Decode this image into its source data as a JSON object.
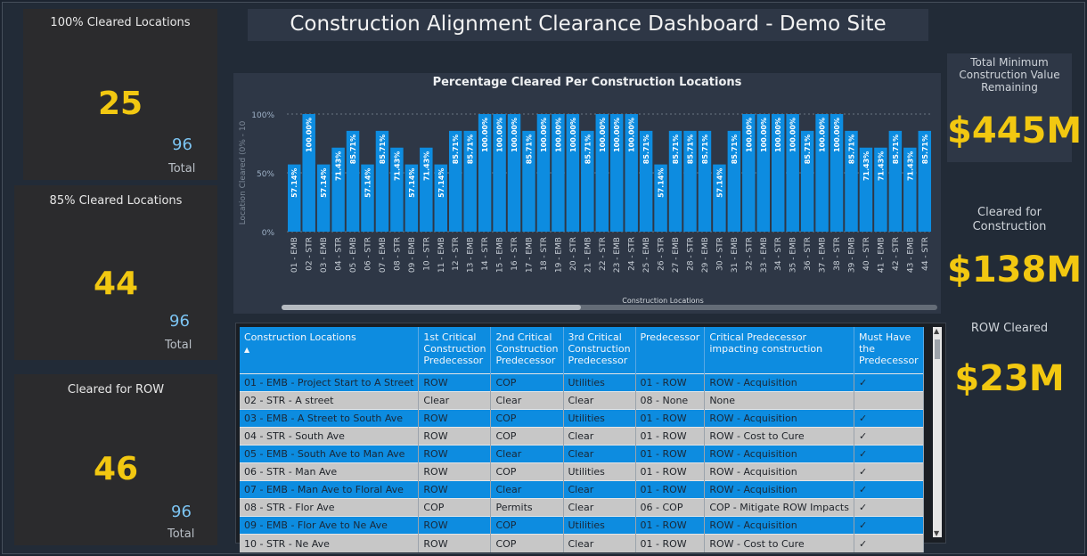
{
  "title": "Construction Alignment Clearance Dashboard - Demo Site",
  "kpis": [
    {
      "title": "100% Cleared Locations",
      "value": "25",
      "total": "96",
      "total_label": "Total"
    },
    {
      "title": "85% Cleared Locations",
      "value": "44",
      "total": "96",
      "total_label": "Total"
    },
    {
      "title": "Cleared for ROW",
      "value": "46",
      "total": "96",
      "total_label": "Total"
    }
  ],
  "right_cards": {
    "remaining": {
      "label_lines": [
        "Total Minimum",
        "Construction Value",
        "Remaining"
      ],
      "value": "$445M"
    },
    "cleared_construction": {
      "label_lines": [
        "Cleared for",
        "Construction"
      ],
      "value": "$138M"
    },
    "row_cleared": {
      "label_lines": [
        "ROW Cleared"
      ],
      "value": "$23M"
    }
  },
  "chart_data": {
    "type": "bar",
    "title": "Percentage Cleared Per Construction Locations",
    "xlabel": "Construction Locations",
    "ylabel": "Location Cleared (0% - 10",
    "yticks": [
      "100%",
      "50%",
      "0%"
    ],
    "ylim": [
      0,
      100
    ],
    "categories": [
      "01 - EMB",
      "02 - STR",
      "03 - EMB",
      "04 - STR",
      "05 - EMB",
      "06 - STR",
      "07 - EMB",
      "08 - STR",
      "09 - EMB",
      "10 - STR",
      "11 - EMB",
      "12 - STR",
      "13 - EMB",
      "14 - STR",
      "15 - EMB",
      "16 - STR",
      "17 - EMB",
      "18 - STR",
      "19 - EMB",
      "20 - STR",
      "21 - EMB",
      "22 - STR",
      "23 - EMB",
      "24 - STR",
      "25 - EMB",
      "26 - STR",
      "27 - EMB",
      "28 - STR",
      "29 - EMB",
      "30 - STR",
      "31 - EMB",
      "32 - STR",
      "33 - EMB",
      "34 - STR",
      "35 - EMB",
      "36 - STR",
      "37 - EMB",
      "38 - STR",
      "39 - EMB",
      "40 - STR",
      "41 - EMB",
      "42 - STR",
      "43 - EMB",
      "44 - STR"
    ],
    "values": [
      57.14,
      100,
      57.14,
      71.43,
      85.71,
      57.14,
      85.71,
      71.43,
      57.14,
      71.43,
      57.14,
      85.71,
      85.71,
      100,
      100,
      100,
      85.71,
      100,
      100,
      100,
      85.71,
      100,
      100,
      100,
      85.71,
      57.14,
      85.71,
      85.71,
      85.71,
      57.14,
      85.71,
      100,
      100,
      100,
      100,
      85.71,
      100,
      100,
      85.71,
      71.43,
      71.43,
      85.71,
      71.43,
      85.71
    ],
    "data_labels": [
      "57.14%",
      "100.00%",
      "57.14%",
      "71.43%",
      "85.71%",
      "57.14%",
      "85.71%",
      "71.43%",
      "57.14%",
      "71.43%",
      "57.14%",
      "85.71%",
      "85.71%",
      "100.00%",
      "100.00%",
      "100.00%",
      "85.71%",
      "100.00%",
      "100.00%",
      "100.00%",
      "85.71%",
      "100.00%",
      "100.00%",
      "100.00%",
      "85.71%",
      "57.14%",
      "85.71%",
      "85.71%",
      "85.71%",
      "57.14%",
      "85.71%",
      "100.00%",
      "100.00%",
      "100.00%",
      "100.00%",
      "85.71%",
      "100.00%",
      "100.00%",
      "85.71%",
      "71.43%",
      "71.43%",
      "85.71%",
      "71.43%",
      "85.71%"
    ],
    "bar_color": "#0d8ce0"
  },
  "table": {
    "headers": [
      "Construction Locations",
      "1st Critical Construction Predecessor",
      "2nd Critical Construction Predecessor",
      "3rd Critical Construction Predecessor",
      "Predecessor",
      "Critical Predecessor impacting construction",
      "Must Have the Predecessor"
    ],
    "rows": [
      [
        "01 - EMB - Project Start to A Street",
        "ROW",
        "COP",
        "Utilities",
        "01 - ROW",
        "ROW - Acquisition",
        "✓"
      ],
      [
        "02 - STR - A street",
        "Clear",
        "Clear",
        "Clear",
        "08 - None",
        "None",
        ""
      ],
      [
        "03 - EMB - A Street to South Ave",
        "ROW",
        "COP",
        "Utilities",
        "01 - ROW",
        "ROW - Acquisition",
        "✓"
      ],
      [
        "04 - STR - South Ave",
        "ROW",
        "COP",
        "Clear",
        "01 - ROW",
        "ROW - Cost to Cure",
        "✓"
      ],
      [
        "05 - EMB - South Ave to Man Ave",
        "ROW",
        "Clear",
        "Clear",
        "01 - ROW",
        "ROW - Acquisition",
        "✓"
      ],
      [
        "06 - STR - Man Ave",
        "ROW",
        "COP",
        "Utilities",
        "01 - ROW",
        "ROW - Acquisition",
        "✓"
      ],
      [
        "07 - EMB - Man Ave to Floral Ave",
        "ROW",
        "Clear",
        "Clear",
        "01 - ROW",
        "ROW - Acquisition",
        "✓"
      ],
      [
        "08 - STR - Flor Ave",
        "COP",
        "Permits",
        "Clear",
        "06 - COP",
        "COP - Mitigate ROW Impacts",
        "✓"
      ],
      [
        "09 - EMB - Flor Ave to Ne Ave",
        "ROW",
        "COP",
        "Utilities",
        "01 - ROW",
        "ROW - Acquisition",
        "✓"
      ],
      [
        "10 - STR - Ne Ave",
        "ROW",
        "COP",
        "Clear",
        "01 - ROW",
        "ROW - Cost to Cure",
        "✓"
      ]
    ]
  }
}
